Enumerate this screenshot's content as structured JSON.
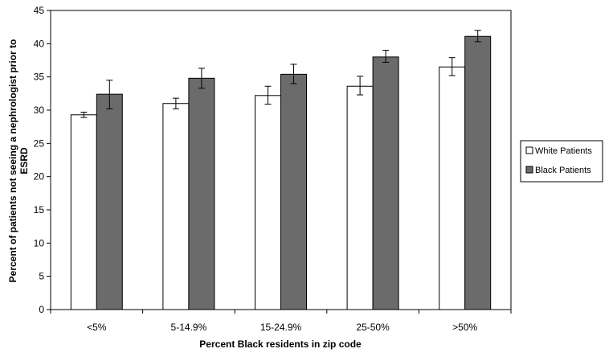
{
  "chart_data": {
    "type": "bar",
    "title": "",
    "xlabel": "Percent Black residents in zip code",
    "ylabel_lines": [
      "Percent of patients not seeing a nephrologist prior to",
      "ESRD"
    ],
    "categories": [
      "<5%",
      "5-14.9%",
      "15-24.9%",
      "25-50%",
      ">50%"
    ],
    "ylim": [
      0,
      45
    ],
    "yticks": [
      "0",
      "5",
      "10",
      "15",
      "20",
      "25",
      "30",
      "35",
      "40",
      "45"
    ],
    "grid": false,
    "legend_position": "right",
    "series": [
      {
        "name": "White Patients",
        "color": "#ffffff",
        "values": [
          29.3,
          31.0,
          32.2,
          33.6,
          36.5
        ],
        "err_low": [
          28.9,
          30.2,
          30.9,
          32.3,
          35.2
        ],
        "err_high": [
          29.7,
          31.8,
          33.6,
          35.1,
          37.9
        ]
      },
      {
        "name": "Black Patients",
        "color": "#6b6b6b",
        "values": [
          32.4,
          34.8,
          35.4,
          38.0,
          41.1
        ],
        "err_low": [
          30.2,
          33.3,
          34.0,
          37.2,
          40.3
        ],
        "err_high": [
          34.5,
          36.3,
          36.9,
          39.0,
          42.0
        ]
      }
    ]
  }
}
